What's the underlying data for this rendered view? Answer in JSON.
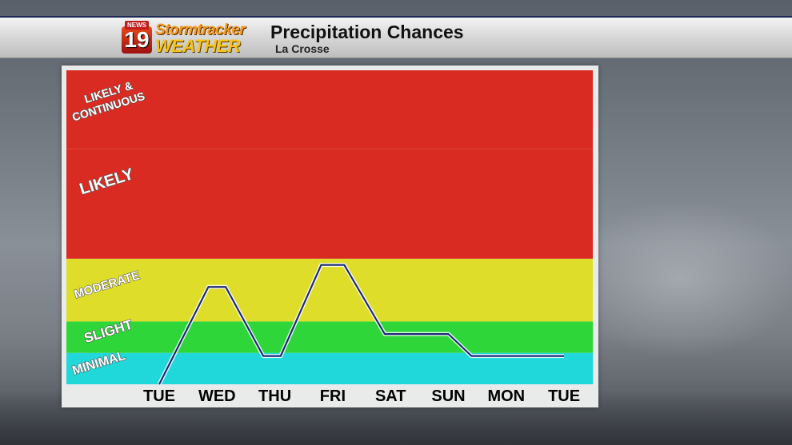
{
  "header": {
    "logo_news": "NEWS",
    "logo_number": "19",
    "logo_line1": "Stormtracker",
    "logo_line2": "WEATHER",
    "title": "Precipitation Chances",
    "subtitle": "La Crosse"
  },
  "colors": {
    "likely": "#d92b22",
    "moderate": "#dede2a",
    "slight": "#2fd63a",
    "minimal": "#20d8da",
    "line": "#1d2a7a"
  },
  "chart_data": {
    "type": "line",
    "title": "Precipitation Chances",
    "subtitle": "La Crosse",
    "categories": [
      "TUE",
      "WED",
      "THU",
      "FRI",
      "SAT",
      "SUN",
      "MON",
      "TUE"
    ],
    "y_scale": [
      "MINIMAL",
      "SLIGHT",
      "MODERATE",
      "LIKELY",
      "LIKELY & CONTINUOUS"
    ],
    "bands": [
      {
        "label": "MINIMAL",
        "from": 0,
        "to": 1,
        "color": "#20d8da"
      },
      {
        "label": "SLIGHT",
        "from": 1,
        "to": 2,
        "color": "#2fd63a"
      },
      {
        "label": "MODERATE",
        "from": 2,
        "to": 4,
        "color": "#dede2a"
      },
      {
        "label": "LIKELY",
        "from": 4,
        "to": 7.5,
        "color": "#d92b22"
      },
      {
        "label": "LIKELY & CONTINUOUS",
        "from": 7.5,
        "to": 10,
        "color": "#d92b22"
      }
    ],
    "ylim": [
      0,
      10
    ],
    "x": [
      0,
      0.85,
      1.15,
      1.8,
      2.1,
      2.8,
      3.2,
      3.9,
      4.3,
      5.0,
      5.4,
      6.0,
      6.6,
      7.0
    ],
    "values": [
      0,
      3.1,
      3.1,
      0.9,
      0.9,
      3.8,
      3.8,
      1.6,
      1.6,
      1.6,
      0.9,
      0.9,
      0.9,
      0.9
    ],
    "series_name": ""
  }
}
